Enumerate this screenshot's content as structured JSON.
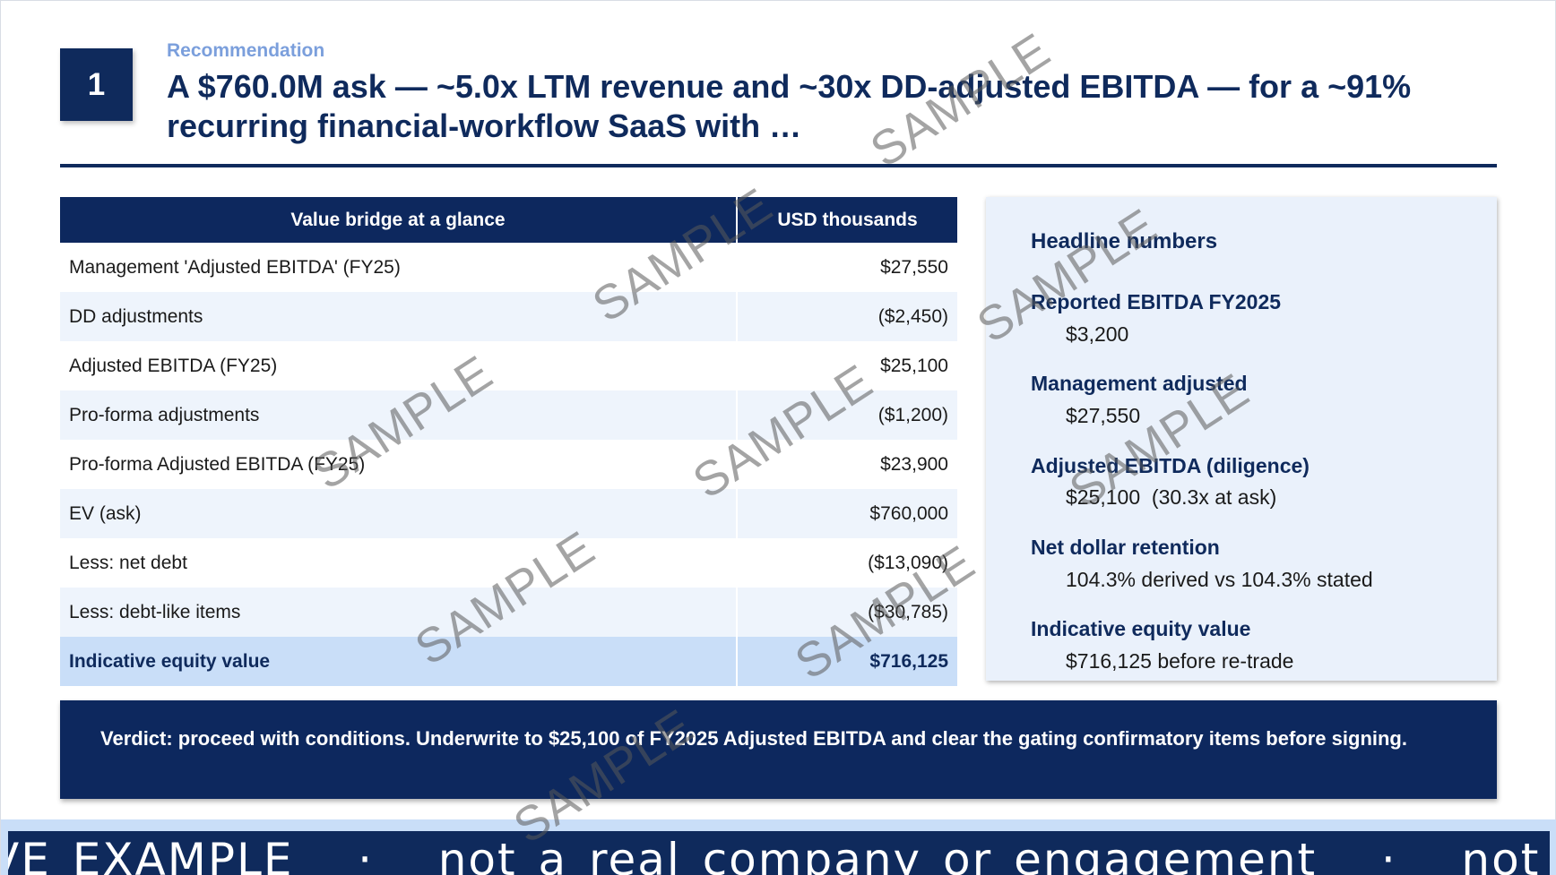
{
  "header": {
    "section_number": "1",
    "kicker": "Recommendation",
    "title": "A $760.0M ask — ~5.0x LTM revenue and ~30x DD-adjusted EBITDA — for a ~91% recurring financial-workflow SaaS with …"
  },
  "bridge_table": {
    "col_label": "Value bridge at a glance",
    "col_value": "USD thousands",
    "rows": [
      {
        "label": "Management 'Adjusted EBITDA' (FY25)",
        "value": "$27,550"
      },
      {
        "label": "DD adjustments",
        "value": "($2,450)"
      },
      {
        "label": "Adjusted EBITDA (FY25)",
        "value": "$25,100"
      },
      {
        "label": "Pro-forma adjustments",
        "value": "($1,200)"
      },
      {
        "label": "Pro-forma Adjusted EBITDA (FY25)",
        "value": "$23,900"
      },
      {
        "label": "EV (ask)",
        "value": "$760,000"
      },
      {
        "label": "Less: net debt",
        "value": "($13,090)"
      },
      {
        "label": "Less: debt-like items",
        "value": "($30,785)"
      },
      {
        "label": "Indicative equity value",
        "value": "$716,125"
      }
    ]
  },
  "headline": {
    "title": "Headline numbers",
    "items": [
      {
        "label": "Reported EBITDA FY2025",
        "value": "$3,200"
      },
      {
        "label": "Management adjusted",
        "value": "$27,550"
      },
      {
        "label": "Adjusted EBITDA (diligence)",
        "value": "$25,100  (30.3x at ask)"
      },
      {
        "label": "Net dollar retention",
        "value": "104.3% derived vs 104.3% stated"
      },
      {
        "label": "Indicative equity value",
        "value": "$716,125 before re-trade"
      }
    ]
  },
  "verdict": {
    "text": "Verdict: proceed with conditions. Underwrite to $25,100 of FY2025 Adjusted EBITDA and clear the gating confirmatory items before signing."
  },
  "footer": {
    "ribbon_text": "VE EXAMPLE   ·   not a real company or engagement   ·   not for re"
  },
  "watermark": {
    "text": "SAMPLE"
  }
}
